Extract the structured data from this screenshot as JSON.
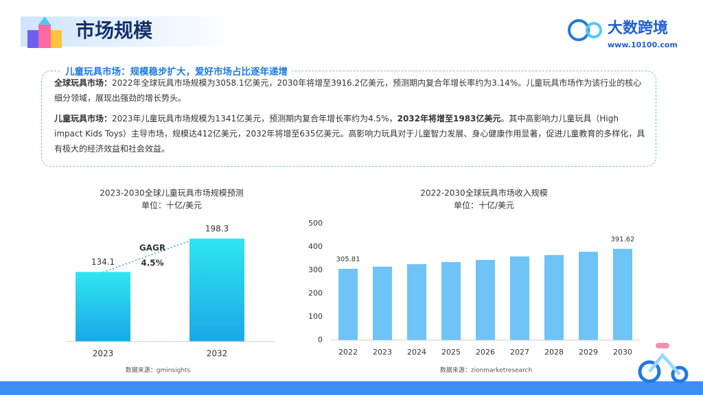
{
  "header": {
    "title": "市场规模",
    "brand": "大数跨境",
    "url": "www.10100.com"
  },
  "callout": {
    "title": "儿童玩具市场：规模稳步扩大，爱好市场占比逐年递增",
    "paragraphs": [
      [
        {
          "text": "全球玩具市场：",
          "bold": true
        },
        {
          "text": "2022年全球玩具市场规模为3058.1亿美元，2030年将增至3916.2亿美元，预测期内复合年增长率约为3.14%。儿童玩具市场作为该行业的核心细分领域，展现出强劲的增长势头。",
          "bold": false
        }
      ],
      [
        {
          "text": "儿童玩具市场：",
          "bold": true
        },
        {
          "text": "2023年儿童玩具市场规模为1341亿美元，预测期内复合年增长率约为4.5%，",
          "bold": false
        },
        {
          "text": "2032年将增至1983亿美元",
          "bold": true
        },
        {
          "text": "。其中高影响力儿童玩具（High impact Kids Toys）主导市场，规模达412亿美元，2032年将增至635亿美元。高影响力玩具对于儿童智力发展、身心健康作用显著，促进儿童教育的多样化，具有极大的经济效益和社会效益。",
          "bold": false
        }
      ]
    ]
  },
  "chart_data": [
    {
      "type": "bar",
      "title": "2023-2030全球儿童玩具市场规模预测",
      "subtitle": "单位：十亿/美元",
      "categories": [
        "2023",
        "2032"
      ],
      "values": [
        134.1,
        198.3
      ],
      "color": "#2ee6f0",
      "annotations": [
        "GAGR",
        "4.5%"
      ],
      "source": "数据来源：gminsights"
    },
    {
      "type": "bar",
      "title": "2022-2030全球玩具市场收入规模",
      "subtitle": "单位：十亿/美元",
      "categories": [
        "2022",
        "2023",
        "2024",
        "2025",
        "2026",
        "2027",
        "2028",
        "2029",
        "2030"
      ],
      "values": [
        305.81,
        315,
        326,
        335,
        344,
        359,
        365,
        379,
        391.62
      ],
      "value_labels": [
        "305.81",
        null,
        null,
        null,
        null,
        null,
        null,
        null,
        "391.62"
      ],
      "color": "#6ec3f7",
      "ylim": [
        0,
        500
      ],
      "yticks": [
        0,
        100,
        200,
        300,
        400,
        500
      ],
      "source": "数据来源：zionmarketresearch"
    }
  ]
}
